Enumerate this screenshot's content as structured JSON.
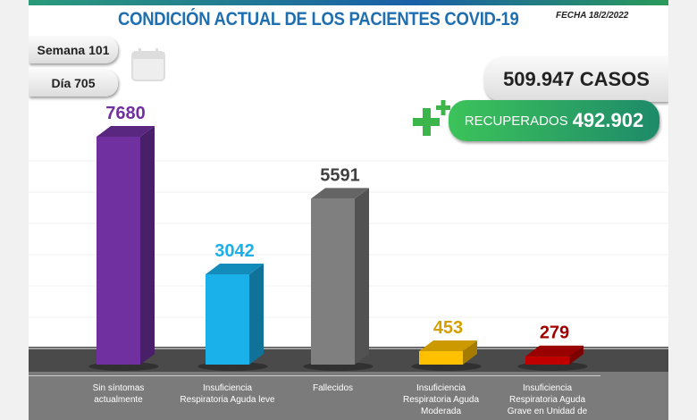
{
  "header": {
    "title": "CONDICIÓN ACTUAL DE LOS PACIENTES COVID-19",
    "fecha": "FECHA 18/2/2022",
    "semana": "Semana 101",
    "dia": "Día 705",
    "calendar_icon": "calendar-icon"
  },
  "totals": {
    "casos": "509.947 CASOS",
    "recuperados_label": "RECUPERADOS",
    "recuperados_value": "492.902"
  },
  "chart_data": {
    "type": "bar",
    "categories": [
      "Sin síntomas actualmente",
      "Insuficiencia Respiratoria Aguda leve",
      "Fallecidos",
      "Insuficiencia Respiratoria Aguda Moderada",
      "Insuficiencia Respiratoria Aguda Grave en Unidad de"
    ],
    "values": [
      7680,
      3042,
      5591,
      453,
      279
    ],
    "value_labels": [
      "7680",
      "3042",
      "5591",
      "453",
      "279"
    ],
    "colors": [
      "#7030a0",
      "#1ab0ea",
      "#7f7f7f",
      "#ffc000",
      "#c00000"
    ],
    "label_colors": [
      "#7030a0",
      "#1ab0ea",
      "#404040",
      "#d4a000",
      "#a00000"
    ],
    "title": "",
    "xlabel": "",
    "ylabel": "",
    "ylim": [
      0,
      8000
    ],
    "grid": true
  }
}
